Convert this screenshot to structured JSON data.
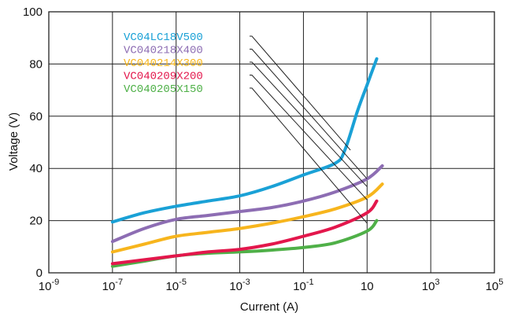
{
  "chart_data": {
    "type": "line",
    "xlabel": "Current (A)",
    "ylabel": "Voltage (V)",
    "x_scale": "log",
    "xlim": [
      1e-09,
      100000.0
    ],
    "ylim": [
      0,
      100
    ],
    "grid": true,
    "x_ticks": [
      {
        "base": "10",
        "exp": "-9"
      },
      {
        "base": "10",
        "exp": "-7"
      },
      {
        "base": "10",
        "exp": "-5"
      },
      {
        "base": "10",
        "exp": "-3"
      },
      {
        "base": "10",
        "exp": "-1"
      },
      {
        "base": "10",
        "exp": ""
      },
      {
        "base": "10",
        "exp": "3"
      },
      {
        "base": "10",
        "exp": "5"
      }
    ],
    "x_tick_values": [
      1e-09,
      1e-07,
      1e-05,
      0.001,
      0.1,
      10,
      1000.0,
      100000.0
    ],
    "y_ticks": [
      "0",
      "20",
      "40",
      "60",
      "80",
      "100"
    ],
    "y_tick_values": [
      0,
      20,
      40,
      60,
      80,
      100
    ],
    "series": [
      {
        "name": "VC04LC18V500",
        "color": "#1aa1d6",
        "points": [
          [
            1e-07,
            19.5
          ],
          [
            1e-06,
            23
          ],
          [
            1e-05,
            25.5
          ],
          [
            0.0001,
            27.5
          ],
          [
            0.001,
            29.5
          ],
          [
            0.01,
            33
          ],
          [
            0.1,
            37.5
          ],
          [
            1,
            42
          ],
          [
            2,
            47
          ],
          [
            5,
            62
          ],
          [
            10,
            72
          ],
          [
            20,
            82
          ]
        ]
      },
      {
        "name": "VC040218X400",
        "color": "#8d6db3",
        "points": [
          [
            1e-07,
            12
          ],
          [
            1e-06,
            17
          ],
          [
            1e-05,
            20.5
          ],
          [
            0.0001,
            22
          ],
          [
            0.001,
            23.5
          ],
          [
            0.01,
            25
          ],
          [
            0.1,
            27.5
          ],
          [
            1,
            31
          ],
          [
            10,
            36
          ],
          [
            30,
            41
          ]
        ]
      },
      {
        "name": "VC040214X300",
        "color": "#f7b51d",
        "points": [
          [
            1e-07,
            8
          ],
          [
            1e-06,
            11
          ],
          [
            1e-05,
            14
          ],
          [
            0.0001,
            15.5
          ],
          [
            0.001,
            17
          ],
          [
            0.01,
            19
          ],
          [
            0.1,
            21.5
          ],
          [
            1,
            24.5
          ],
          [
            10,
            29
          ],
          [
            30,
            34
          ]
        ]
      },
      {
        "name": "VC040209X200",
        "color": "#e3174c",
        "points": [
          [
            1e-07,
            3.5
          ],
          [
            1e-06,
            5
          ],
          [
            1e-05,
            6.5
          ],
          [
            0.0001,
            8
          ],
          [
            0.001,
            9
          ],
          [
            0.01,
            11
          ],
          [
            0.1,
            14
          ],
          [
            1,
            17.5
          ],
          [
            10,
            23
          ],
          [
            20,
            27.5
          ]
        ]
      },
      {
        "name": "VC040205X150",
        "color": "#4fb048",
        "points": [
          [
            1e-07,
            2.5
          ],
          [
            1e-06,
            4.5
          ],
          [
            1e-05,
            6.5
          ],
          [
            0.0001,
            7.5
          ],
          [
            0.001,
            8
          ],
          [
            0.01,
            8.7
          ],
          [
            0.1,
            9.7
          ],
          [
            1,
            11.5
          ],
          [
            10,
            16
          ],
          [
            20,
            20
          ]
        ]
      }
    ],
    "legend": [
      {
        "label": "VC04LC18V500",
        "color": "#1aa1d6",
        "target": [
          3,
          47
        ]
      },
      {
        "label": "VC040218X400",
        "color": "#8d6db3",
        "target": [
          10,
          36
        ]
      },
      {
        "label": "VC040214X300",
        "color": "#f7b51d",
        "target": [
          10,
          33
        ]
      },
      {
        "label": "VC040209X200",
        "color": "#e3174c",
        "target": [
          10,
          28
        ]
      },
      {
        "label": "VC040205X150",
        "color": "#4fb048",
        "target": [
          10,
          19
        ]
      }
    ]
  }
}
